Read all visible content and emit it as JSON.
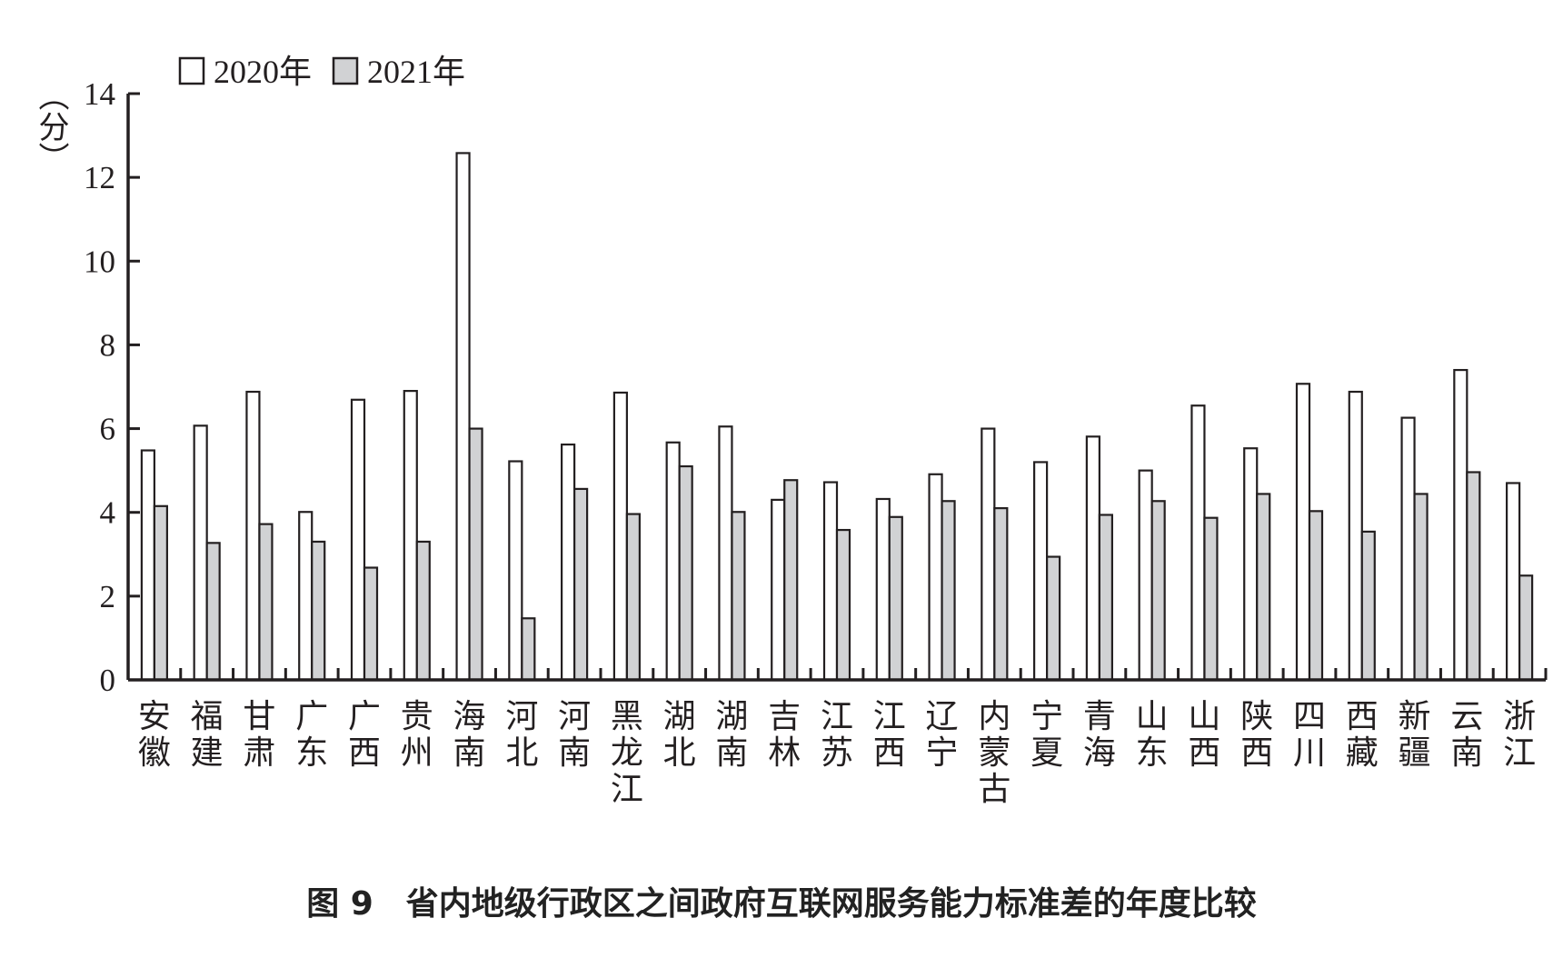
{
  "chart_data": {
    "type": "bar",
    "title": "图 9　省内地级行政区之间政府互联网服务能力标准差的年度比较",
    "ylabel": "（分）",
    "ylim": [
      0,
      14
    ],
    "yticks": [
      0,
      2,
      4,
      6,
      8,
      10,
      12,
      14
    ],
    "legend_placement": "top-left",
    "grid": false,
    "categories": [
      "安徽",
      "福建",
      "甘肃",
      "广东",
      "广西",
      "贵州",
      "海南",
      "河北",
      "河南",
      "黑龙江",
      "湖北",
      "湖南",
      "吉林",
      "江苏",
      "江西",
      "辽宁",
      "内蒙古",
      "宁夏",
      "青海",
      "山东",
      "山西",
      "陕西",
      "四川",
      "西藏",
      "新疆",
      "云南",
      "浙江"
    ],
    "series": [
      {
        "name": "2020年",
        "color": "#ffffff",
        "values": [
          5.48,
          6.07,
          6.88,
          4.01,
          6.69,
          6.9,
          12.58,
          5.22,
          5.62,
          6.86,
          5.67,
          6.05,
          4.3,
          4.72,
          4.32,
          4.91,
          6.0,
          5.2,
          5.81,
          5.0,
          6.55,
          5.53,
          7.07,
          6.88,
          6.26,
          7.4,
          4.7
        ]
      },
      {
        "name": "2021年",
        "color": "#d1d2d4",
        "values": [
          4.15,
          3.27,
          3.72,
          3.3,
          2.68,
          3.3,
          6.0,
          1.47,
          4.56,
          3.96,
          5.1,
          4.01,
          4.77,
          3.58,
          3.89,
          4.27,
          4.1,
          2.94,
          3.94,
          4.27,
          3.87,
          4.44,
          4.03,
          3.54,
          4.44,
          4.96,
          2.49
        ]
      }
    ]
  }
}
